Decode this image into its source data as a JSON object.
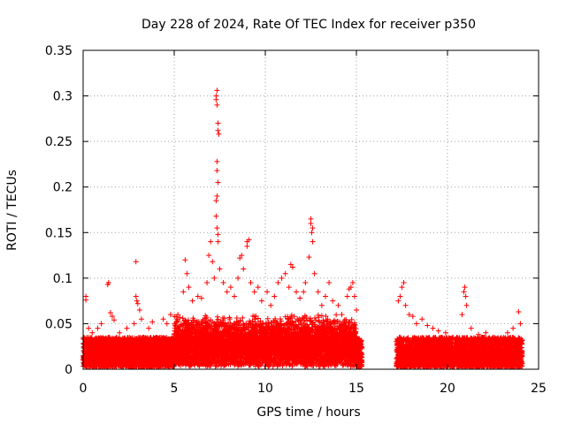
{
  "chart_data": {
    "type": "scatter",
    "title": "Day 228 of 2024, Rate Of TEC Index for receiver p350",
    "xlabel": "GPS time / hours",
    "ylabel": "ROTI / TECUs",
    "xlim": [
      0,
      25
    ],
    "ylim": [
      0,
      0.35
    ],
    "x_ticks": [
      "0",
      "5",
      "10",
      "15",
      "20",
      "25"
    ],
    "y_ticks": [
      "0",
      "0.05",
      "0.1",
      "0.15",
      "0.2",
      "0.25",
      "0.3",
      "0.35"
    ],
    "grid": true,
    "marker": "+",
    "color": "#ff0000",
    "series": [
      {
        "name": "ROTI",
        "points": [
          [
            0.15,
            0.08
          ],
          [
            0.15,
            0.076
          ],
          [
            0.3,
            0.045
          ],
          [
            0.5,
            0.04
          ],
          [
            0.8,
            0.045
          ],
          [
            1.0,
            0.05
          ],
          [
            1.35,
            0.093
          ],
          [
            1.4,
            0.095
          ],
          [
            1.5,
            0.062
          ],
          [
            1.6,
            0.058
          ],
          [
            1.7,
            0.054
          ],
          [
            2.0,
            0.04
          ],
          [
            2.4,
            0.045
          ],
          [
            2.8,
            0.05
          ],
          [
            2.9,
            0.118
          ],
          [
            2.9,
            0.08
          ],
          [
            2.95,
            0.075
          ],
          [
            3.0,
            0.072
          ],
          [
            3.1,
            0.065
          ],
          [
            3.2,
            0.055
          ],
          [
            3.6,
            0.045
          ],
          [
            3.8,
            0.052
          ],
          [
            4.4,
            0.055
          ],
          [
            4.6,
            0.05
          ],
          [
            4.8,
            0.06
          ],
          [
            5.2,
            0.06
          ],
          [
            5.5,
            0.085
          ],
          [
            5.6,
            0.12
          ],
          [
            5.7,
            0.105
          ],
          [
            5.8,
            0.09
          ],
          [
            6.0,
            0.075
          ],
          [
            6.3,
            0.08
          ],
          [
            6.5,
            0.078
          ],
          [
            6.8,
            0.095
          ],
          [
            6.9,
            0.125
          ],
          [
            7.0,
            0.14
          ],
          [
            7.1,
            0.118
          ],
          [
            7.2,
            0.1
          ],
          [
            7.3,
            0.3
          ],
          [
            7.3,
            0.296
          ],
          [
            7.35,
            0.306
          ],
          [
            7.35,
            0.29
          ],
          [
            7.4,
            0.27
          ],
          [
            7.4,
            0.262
          ],
          [
            7.45,
            0.258
          ],
          [
            7.35,
            0.228
          ],
          [
            7.35,
            0.218
          ],
          [
            7.4,
            0.205
          ],
          [
            7.35,
            0.19
          ],
          [
            7.3,
            0.185
          ],
          [
            7.3,
            0.168
          ],
          [
            7.35,
            0.155
          ],
          [
            7.4,
            0.148
          ],
          [
            7.4,
            0.14
          ],
          [
            7.5,
            0.11
          ],
          [
            7.7,
            0.095
          ],
          [
            7.9,
            0.085
          ],
          [
            8.1,
            0.09
          ],
          [
            8.3,
            0.08
          ],
          [
            8.5,
            0.1
          ],
          [
            8.6,
            0.122
          ],
          [
            8.7,
            0.125
          ],
          [
            8.8,
            0.11
          ],
          [
            9.0,
            0.14
          ],
          [
            9.0,
            0.135
          ],
          [
            9.1,
            0.142
          ],
          [
            9.2,
            0.095
          ],
          [
            9.4,
            0.085
          ],
          [
            9.6,
            0.09
          ],
          [
            9.8,
            0.075
          ],
          [
            10.1,
            0.085
          ],
          [
            10.3,
            0.07
          ],
          [
            10.5,
            0.08
          ],
          [
            10.7,
            0.095
          ],
          [
            10.9,
            0.1
          ],
          [
            11.1,
            0.105
          ],
          [
            11.3,
            0.09
          ],
          [
            11.4,
            0.115
          ],
          [
            11.5,
            0.112
          ],
          [
            11.7,
            0.085
          ],
          [
            11.9,
            0.078
          ],
          [
            12.1,
            0.085
          ],
          [
            12.2,
            0.095
          ],
          [
            12.4,
            0.123
          ],
          [
            12.5,
            0.165
          ],
          [
            12.5,
            0.16
          ],
          [
            12.55,
            0.15
          ],
          [
            12.6,
            0.14
          ],
          [
            12.6,
            0.155
          ],
          [
            12.7,
            0.105
          ],
          [
            12.9,
            0.085
          ],
          [
            13.1,
            0.07
          ],
          [
            13.3,
            0.08
          ],
          [
            13.5,
            0.095
          ],
          [
            13.7,
            0.075
          ],
          [
            14.0,
            0.07
          ],
          [
            14.2,
            0.06
          ],
          [
            14.5,
            0.08
          ],
          [
            14.6,
            0.088
          ],
          [
            14.7,
            0.09
          ],
          [
            14.8,
            0.095
          ],
          [
            14.9,
            0.08
          ],
          [
            15.0,
            0.065
          ],
          [
            17.3,
            0.075
          ],
          [
            17.4,
            0.08
          ],
          [
            17.5,
            0.09
          ],
          [
            17.6,
            0.095
          ],
          [
            17.7,
            0.07
          ],
          [
            17.9,
            0.06
          ],
          [
            18.1,
            0.058
          ],
          [
            18.3,
            0.05
          ],
          [
            18.6,
            0.055
          ],
          [
            18.9,
            0.048
          ],
          [
            19.2,
            0.045
          ],
          [
            19.5,
            0.042
          ],
          [
            19.9,
            0.04
          ],
          [
            20.3,
            0.035
          ],
          [
            20.8,
            0.06
          ],
          [
            20.9,
            0.085
          ],
          [
            20.95,
            0.09
          ],
          [
            21.0,
            0.08
          ],
          [
            21.05,
            0.07
          ],
          [
            21.3,
            0.045
          ],
          [
            21.7,
            0.038
          ],
          [
            22.1,
            0.04
          ],
          [
            22.5,
            0.035
          ],
          [
            22.9,
            0.03
          ],
          [
            23.3,
            0.04
          ],
          [
            23.6,
            0.045
          ],
          [
            23.9,
            0.063
          ],
          [
            24.0,
            0.05
          ]
        ],
        "band": {
          "segments": [
            [
              0,
              15.3
            ],
            [
              17.2,
              24.1
            ]
          ],
          "base_min": 0.003,
          "base_max": 0.035,
          "density_per_hour": 520
        }
      }
    ]
  }
}
